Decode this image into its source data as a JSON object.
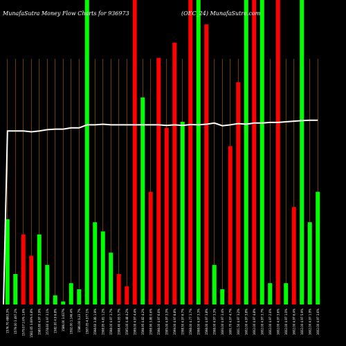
{
  "title": "MunafaSutra  Money Flow  Charts for 936973",
  "subtitle": "(OEC_24)  MunafaSutra.com",
  "chart_data": {
    "type": "bar",
    "ylim": [
      0,
      100
    ],
    "grid": true,
    "colors": {
      "up": "#00ff00",
      "down": "#ff0000",
      "line": "#ffffff",
      "grid": "#b86e00",
      "background": "#000000"
    },
    "bars": [
      {
        "label": "1576.70 4863.3%",
        "value": 28,
        "color": "up"
      },
      {
        "label": "1579.00 3.497.2%",
        "value": 10,
        "color": "up"
      },
      {
        "label": "1579.07 2.6% 1.6%",
        "value": 23,
        "color": "down"
      },
      {
        "label": "1582.65 3.69% 0.8%",
        "value": 16,
        "color": "down"
      },
      {
        "label": "1580.80 4.97 3.9%",
        "value": 23,
        "color": "up"
      },
      {
        "label": "1578.60 4.97 3.1%",
        "value": 13,
        "color": "up"
      },
      {
        "label": "1582.00 4.9 6.8%",
        "value": 3,
        "color": "up"
      },
      {
        "label": "1586.00 3.637%",
        "value": 1,
        "color": "up"
      },
      {
        "label": "1592.00 1.146.4%",
        "value": 7,
        "color": "up"
      },
      {
        "label": "1586.00 0.23 7%",
        "value": 5,
        "color": "up"
      },
      {
        "label": "1587.05 4.577.1%",
        "value": 100,
        "color": "up"
      },
      {
        "label": "1598.60 3.80 1.9%",
        "value": 27,
        "color": "up"
      },
      {
        "label": "1598.95 4.81 1.2%",
        "value": 24,
        "color": "up"
      },
      {
        "label": "1598.00 4.97 3.7%",
        "value": 17,
        "color": "up"
      },
      {
        "label": "1598.40 4.93 5.7%",
        "value": 10,
        "color": "down"
      },
      {
        "label": "1595.00 4.48 4.2%",
        "value": 6,
        "color": "down"
      },
      {
        "label": "1599.00 4.97 4.4%",
        "value": 100,
        "color": "down"
      },
      {
        "label": "1598.95 4.82 4.2%",
        "value": 68,
        "color": "up"
      },
      {
        "label": "1598.90 3.80 0.6%",
        "value": 37,
        "color": "down"
      },
      {
        "label": "1598.00 4.97 6.6%",
        "value": 81,
        "color": "down"
      },
      {
        "label": "1595.00 4.97 3.3%",
        "value": 58,
        "color": "down"
      },
      {
        "label": "1599.00 4.97 8.8%",
        "value": 86,
        "color": "down"
      },
      {
        "label": "1598.50 4.97 6.7%",
        "value": 60,
        "color": "up"
      },
      {
        "label": "1598.00 4.77 3.7%",
        "value": 100,
        "color": "down"
      },
      {
        "label": "1598.00 4.97 3.3%",
        "value": 100,
        "color": "up"
      },
      {
        "label": "1598.00 4.97 3.8%",
        "value": 92,
        "color": "down"
      },
      {
        "label": "1598.00 4.97 3.3%",
        "value": 13,
        "color": "up"
      },
      {
        "label": "1600.00 4.97 3.4%",
        "value": 5,
        "color": "up"
      },
      {
        "label": "1600.70 4.97 4.7%",
        "value": 52,
        "color": "down"
      },
      {
        "label": "1601.50 4.97 3.2%",
        "value": 73,
        "color": "down"
      },
      {
        "label": "1602.00 4.97 3.8%",
        "value": 100,
        "color": "up"
      },
      {
        "label": "1602.00 4.97 4.8%",
        "value": 100,
        "color": "down"
      },
      {
        "label": "1602.00 4.97 3.7%",
        "value": 100,
        "color": "up"
      },
      {
        "label": "1602.00 4.97 2.6%",
        "value": 7,
        "color": "up"
      },
      {
        "label": "1602.00 4.97 3.6%",
        "value": 100,
        "color": "down"
      },
      {
        "label": "1602.00 4.97 1.0%",
        "value": 7,
        "color": "up"
      },
      {
        "label": "1602.00 4.97 6.4%",
        "value": 32,
        "color": "down"
      },
      {
        "label": "1602.00 4.97 5.9%",
        "value": 100,
        "color": "up"
      },
      {
        "label": "1602.00 4.97 1.9%",
        "value": 27,
        "color": "up"
      },
      {
        "label": "1602.00 4.97 3.6%",
        "value": 37,
        "color": "up"
      }
    ],
    "line": {
      "values": [
        57,
        57,
        57,
        56.7,
        57,
        57.4,
        57.6,
        57.6,
        58,
        58,
        59,
        59,
        59.2,
        59,
        59,
        59,
        59,
        59,
        59,
        59,
        58.8,
        59,
        58.8,
        59.1,
        59,
        59.2,
        59.6,
        58.7,
        59,
        59.4,
        59.2,
        59.6,
        59.6,
        59.8,
        59.8,
        60,
        60.2,
        60.4,
        60.5,
        60.5
      ],
      "start_value": 0
    }
  }
}
